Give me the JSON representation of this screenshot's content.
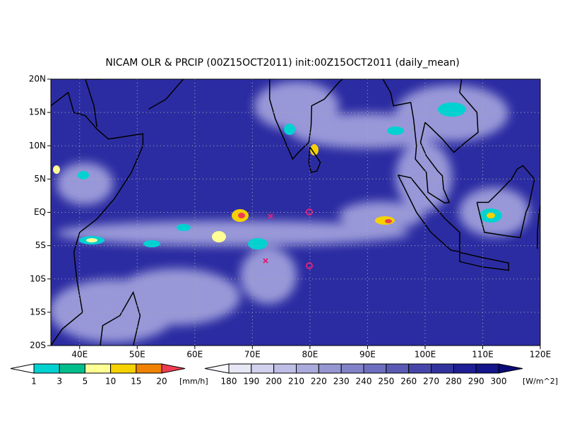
{
  "title": "NICAM OLR & PRCIP (00Z15OCT2011) init:00Z15OCT2011 (daily_mean)",
  "map": {
    "lonlim": [
      35,
      120
    ],
    "latlim": [
      -20,
      20
    ],
    "lon_ticks": [
      {
        "value": 40,
        "label": "40E"
      },
      {
        "value": 50,
        "label": "50E"
      },
      {
        "value": 60,
        "label": "60E"
      },
      {
        "value": 70,
        "label": "70E"
      },
      {
        "value": 80,
        "label": "80E"
      },
      {
        "value": 90,
        "label": "90E"
      },
      {
        "value": 100,
        "label": "100E"
      },
      {
        "value": 110,
        "label": "110E"
      },
      {
        "value": 120,
        "label": "120E"
      }
    ],
    "lat_ticks": [
      {
        "value": 20,
        "label": "20N"
      },
      {
        "value": 15,
        "label": "15N"
      },
      {
        "value": 10,
        "label": "10N"
      },
      {
        "value": 5,
        "label": "5N"
      },
      {
        "value": 0,
        "label": "EQ"
      },
      {
        "value": -5,
        "label": "5S"
      },
      {
        "value": -10,
        "label": "10S"
      },
      {
        "value": -15,
        "label": "15S"
      },
      {
        "value": -20,
        "label": "20S"
      }
    ]
  },
  "precip_colorbar": {
    "levels": [
      1,
      3,
      5,
      10,
      15,
      20
    ],
    "units": "[mm/h]",
    "colors": [
      "#ffffff",
      "#00d2d2",
      "#00be8c",
      "#ffff96",
      "#f5d200",
      "#f08200",
      "#f03c50"
    ]
  },
  "olr_colorbar": {
    "levels": [
      180,
      190,
      200,
      210,
      220,
      230,
      240,
      250,
      260,
      270,
      280,
      290,
      300
    ],
    "units": "[W/m^2]",
    "colors": [
      "#f8f8ff",
      "#e6e6f5",
      "#d2d2ee",
      "#bebee6",
      "#aaaadc",
      "#9696d2",
      "#8282c8",
      "#6e6ec0",
      "#5a5ab4",
      "#4646aa",
      "#32329e",
      "#1e1e96",
      "#14148c",
      "#0a0a78"
    ]
  }
}
